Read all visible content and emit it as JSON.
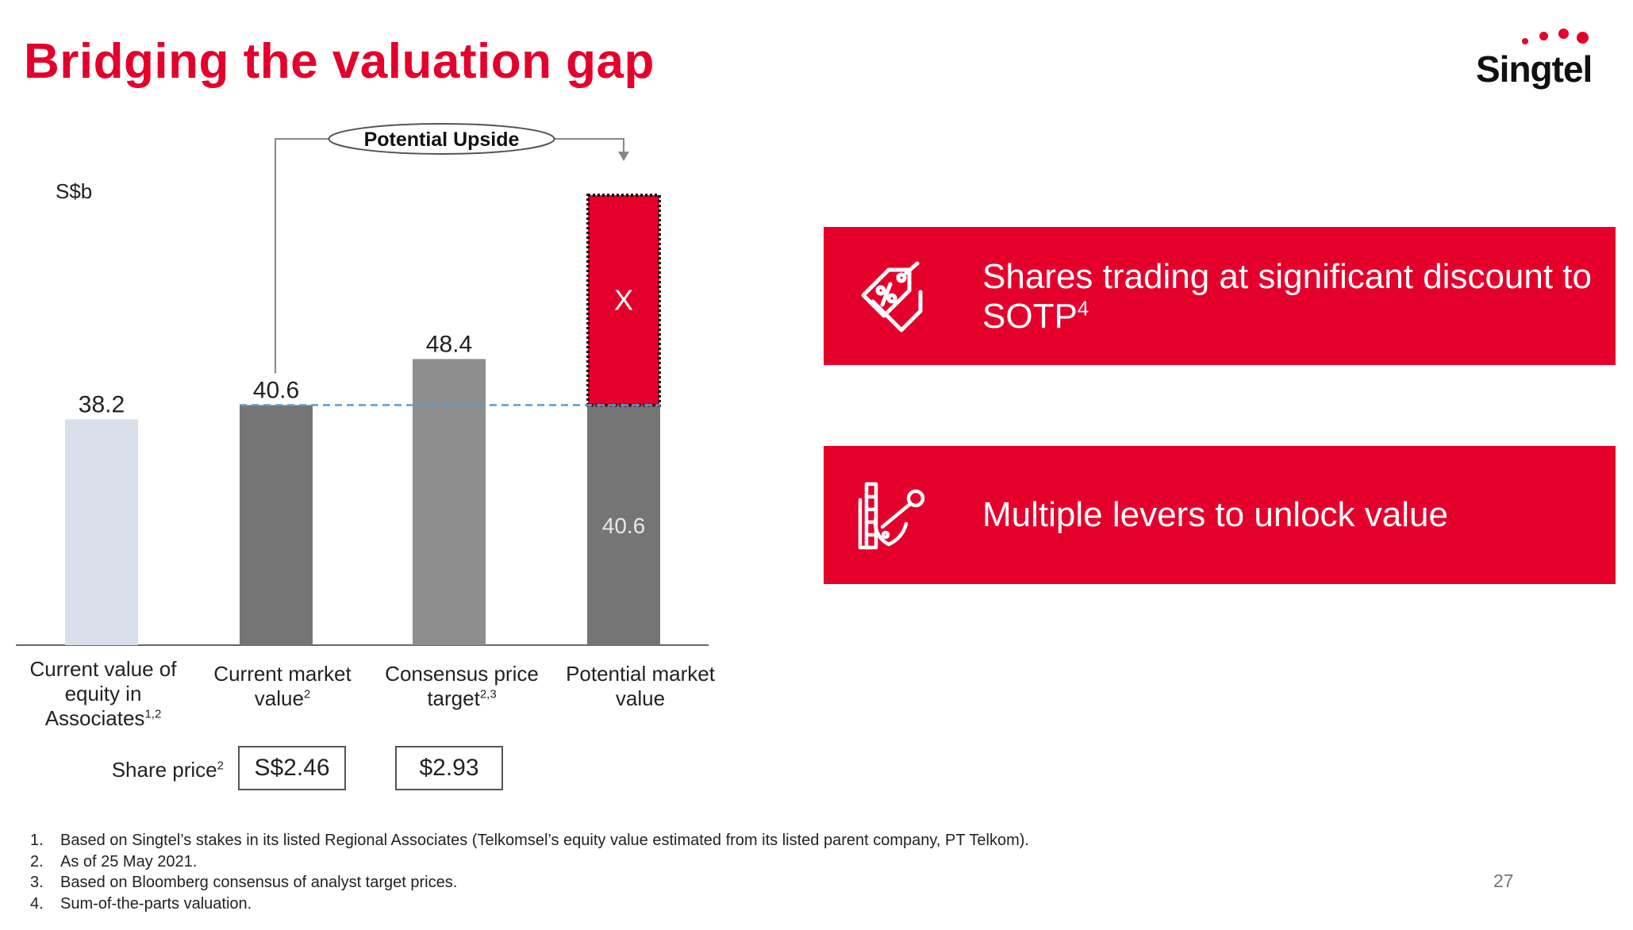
{
  "title": "Bridging the valuation gap",
  "brand": {
    "name": "Singtel",
    "accent": "#e4002b"
  },
  "chart_data": {
    "type": "bar",
    "unit_label": "S$b",
    "categories": [
      "Current value of equity in Associates",
      "Current market value",
      "Consensus price target",
      "Potential market value"
    ],
    "values": [
      38.2,
      40.6,
      48.4,
      40.6
    ],
    "value_labels": [
      "38.2",
      "40.6",
      "48.4",
      "40.6"
    ],
    "upside_segment": {
      "category_index": 3,
      "label": "X",
      "style": "dotted-border",
      "color": "#e4002b"
    },
    "bar_colors": [
      "#d9dfea",
      "#757575",
      "#8e8e8e",
      "#757575"
    ],
    "reference_line": {
      "value": 40.6,
      "style": "dashed",
      "color": "#5a9bd4"
    },
    "annotation": {
      "text": "Potential Upside",
      "from_category": 1,
      "to_category": 3
    }
  },
  "category_labels": [
    {
      "lines": [
        "Current value of",
        "equity in"
      ],
      "last": "Associates",
      "sup": "1,2"
    },
    {
      "lines": [
        "Current market"
      ],
      "last": "value",
      "sup": "2"
    },
    {
      "lines": [
        "Consensus price"
      ],
      "last": "target",
      "sup": "2,3"
    },
    {
      "lines": [
        "Potential market"
      ],
      "last": "value",
      "sup": ""
    }
  ],
  "share_price": {
    "label": "Share price",
    "label_sup": "2",
    "values": [
      "S$2.46",
      "$2.93"
    ]
  },
  "highlights": [
    {
      "icon": "discount-tag-icon",
      "text": "Shares trading at significant discount to",
      "text2": "SOTP",
      "sup": "4"
    },
    {
      "icon": "levers-icon",
      "text": "Multiple levers to unlock value"
    }
  ],
  "footnotes": [
    {
      "num": "1.",
      "text": "Based on Singtel’s stakes in its listed Regional Associates (Telkomsel’s equity value estimated from its listed parent company, PT Telkom)."
    },
    {
      "num": "2.",
      "text": "As of 25 May 2021."
    },
    {
      "num": "3.",
      "text": "Based on Bloomberg consensus of analyst target prices."
    },
    {
      "num": "4.",
      "text": "Sum-of-the-parts valuation."
    }
  ],
  "page_number": "27"
}
